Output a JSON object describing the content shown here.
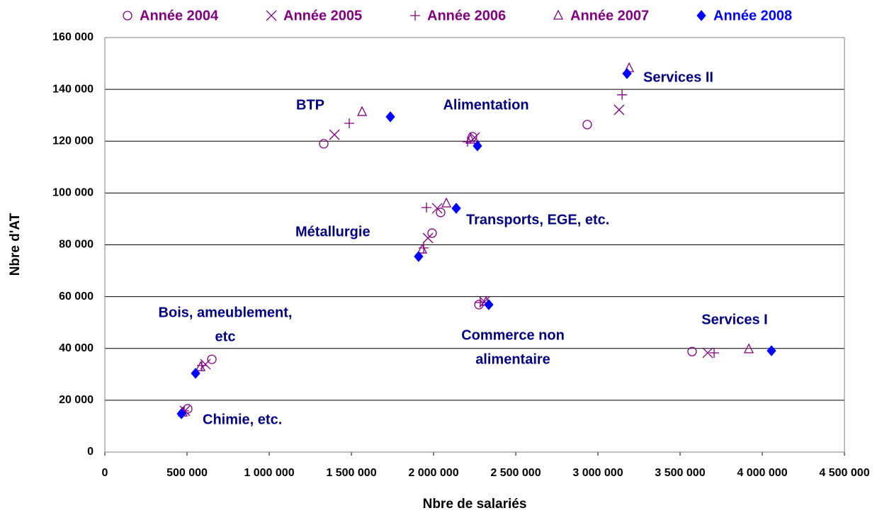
{
  "chart_data": {
    "type": "scatter",
    "x_label": "Nbre de salariés",
    "y_label": "Nbre d'AT",
    "xlim": [
      0,
      4500000
    ],
    "ylim": [
      0,
      160000
    ],
    "xticks": [
      0,
      {
        "value": 500000,
        "label": "500 000"
      },
      {
        "value": 1000000,
        "label": "1 000 000"
      },
      {
        "value": 1500000,
        "label": "1 500 000"
      },
      {
        "value": 2000000,
        "label": "2 000 000"
      },
      {
        "value": 2500000,
        "label": "2 500 000"
      },
      {
        "value": 3000000,
        "label": "3 000 000"
      },
      {
        "value": 3500000,
        "label": "3 500 000"
      },
      {
        "value": 4000000,
        "label": "4 000 000"
      },
      {
        "value": 4500000,
        "label": "4 500 000"
      }
    ],
    "yticks": [
      0,
      {
        "value": 20000,
        "label": "20 000"
      },
      {
        "value": 40000,
        "label": "40 000"
      },
      {
        "value": 60000,
        "label": "60 000"
      },
      {
        "value": 80000,
        "label": "80 000"
      },
      {
        "value": 100000,
        "label": "100 000"
      },
      {
        "value": 120000,
        "label": "120 000"
      },
      {
        "value": 140000,
        "label": "140 000"
      },
      {
        "value": 160000,
        "label": "160 000"
      }
    ],
    "grid": true,
    "legend": "top",
    "series": [
      {
        "name": "Année 2004",
        "color": "#800080",
        "marker": "circle",
        "x": [
          504000,
          651000,
          1332000,
          1991000,
          2043000,
          2237000,
          2276000,
          2935000,
          3573000
        ],
        "values": [
          16700,
          35800,
          119000,
          84500,
          92500,
          121700,
          56900,
          126400,
          38800
        ]
      },
      {
        "name": "Année 2005",
        "color": "#800080",
        "marker": "x",
        "x": [
          487000,
          612000,
          1397000,
          1966000,
          2022000,
          2250000,
          2310000,
          3129000,
          3668000
        ],
        "values": [
          15900,
          33900,
          122500,
          82600,
          94100,
          121400,
          58000,
          132100,
          38300
        ]
      },
      {
        "name": "Année 2006",
        "color": "#800080",
        "marker": "plus",
        "x": [
          483000,
          590000,
          1487000,
          1940000,
          1957000,
          2207000,
          2284000,
          3147000,
          3707000
        ],
        "values": [
          15900,
          33400,
          126900,
          78800,
          94400,
          119800,
          57700,
          137900,
          38300
        ]
      },
      {
        "name": "Année 2007",
        "color": "#800080",
        "marker": "triangle",
        "x": [
          474000,
          582000,
          1565000,
          1931000,
          2078000,
          2224000,
          2319000,
          3190000,
          3918000
        ],
        "values": [
          15300,
          32800,
          131300,
          78200,
          96000,
          120600,
          58000,
          148200,
          39700
        ]
      },
      {
        "name": "Année 2008",
        "color": "#0000ff",
        "marker": "diamond",
        "x": [
          466000,
          552000,
          1737000,
          1909000,
          2138000,
          2267000,
          2336000,
          3177000,
          4056000
        ],
        "values": [
          14800,
          30400,
          129400,
          75500,
          94100,
          118200,
          56900,
          146100,
          39100
        ]
      }
    ],
    "annotations": [
      [
        "Services II"
      ],
      [
        "BTP"
      ],
      [
        "Alimentation"
      ],
      [
        "Transports, EGE, etc."
      ],
      [
        "Métallurgie"
      ],
      [
        "Bois, ameublement,",
        "etc"
      ],
      [
        "Commerce non",
        "alimentaire"
      ],
      [
        "Services I"
      ],
      [
        "Chimie, etc."
      ]
    ]
  }
}
